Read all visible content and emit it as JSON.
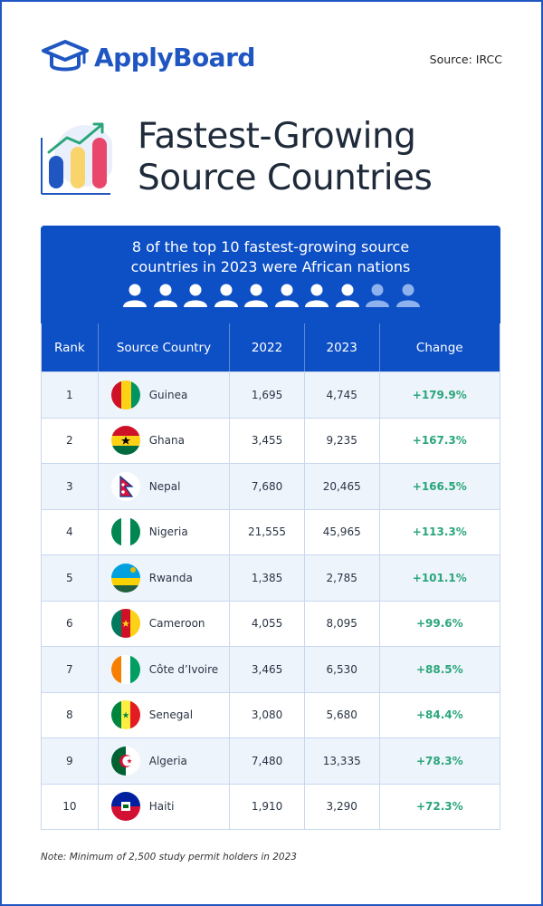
{
  "header": {
    "logo_text": "ApplyBoard",
    "logo_icon": "graduation-cap-icon",
    "source": "Source: IRCC"
  },
  "title": {
    "line1": "Fastest-Growing",
    "line2": "Source Countries",
    "icon": "bar-chart-growth-icon"
  },
  "banner": {
    "line1": "8 of the top 10 fastest-growing source",
    "line2": "countries in 2023 were African nations",
    "people_total": 10,
    "people_highlighted": 8,
    "colors": {
      "highlight": "#ffffff",
      "muted": "#8fb2ee"
    }
  },
  "table": {
    "headers": {
      "rank": "Rank",
      "country": "Source Country",
      "y2022": "2022",
      "y2023": "2023",
      "change": "Change"
    },
    "rows": [
      {
        "rank": "1",
        "country": "Guinea",
        "flag": "guinea",
        "y2022": "1,695",
        "y2023": "4,745",
        "change": "+179.9%"
      },
      {
        "rank": "2",
        "country": "Ghana",
        "flag": "ghana",
        "y2022": "3,455",
        "y2023": "9,235",
        "change": "+167.3%"
      },
      {
        "rank": "3",
        "country": "Nepal",
        "flag": "nepal",
        "y2022": "7,680",
        "y2023": "20,465",
        "change": "+166.5%"
      },
      {
        "rank": "4",
        "country": "Nigeria",
        "flag": "nigeria",
        "y2022": "21,555",
        "y2023": "45,965",
        "change": "+113.3%"
      },
      {
        "rank": "5",
        "country": "Rwanda",
        "flag": "rwanda",
        "y2022": "1,385",
        "y2023": "2,785",
        "change": "+101.1%"
      },
      {
        "rank": "6",
        "country": "Cameroon",
        "flag": "cameroon",
        "y2022": "4,055",
        "y2023": "8,095",
        "change": "+99.6%"
      },
      {
        "rank": "7",
        "country": "Côte d’Ivoire",
        "flag": "cote-divoire",
        "y2022": "3,465",
        "y2023": "6,530",
        "change": "+88.5%"
      },
      {
        "rank": "8",
        "country": "Senegal",
        "flag": "senegal",
        "y2022": "3,080",
        "y2023": "5,680",
        "change": "+84.4%"
      },
      {
        "rank": "9",
        "country": "Algeria",
        "flag": "algeria",
        "y2022": "7,480",
        "y2023": "13,335",
        "change": "+78.3%"
      },
      {
        "rank": "10",
        "country": "Haiti",
        "flag": "haiti",
        "y2022": "1,910",
        "y2023": "3,290",
        "change": "+72.3%"
      }
    ]
  },
  "note": "Note: Minimum of 2,500 study permit holders in 2023",
  "colors": {
    "brand": "#1f56c2",
    "banner": "#0d4fc4",
    "change": "#2aa67a",
    "row_alt": "#eef4fc"
  }
}
